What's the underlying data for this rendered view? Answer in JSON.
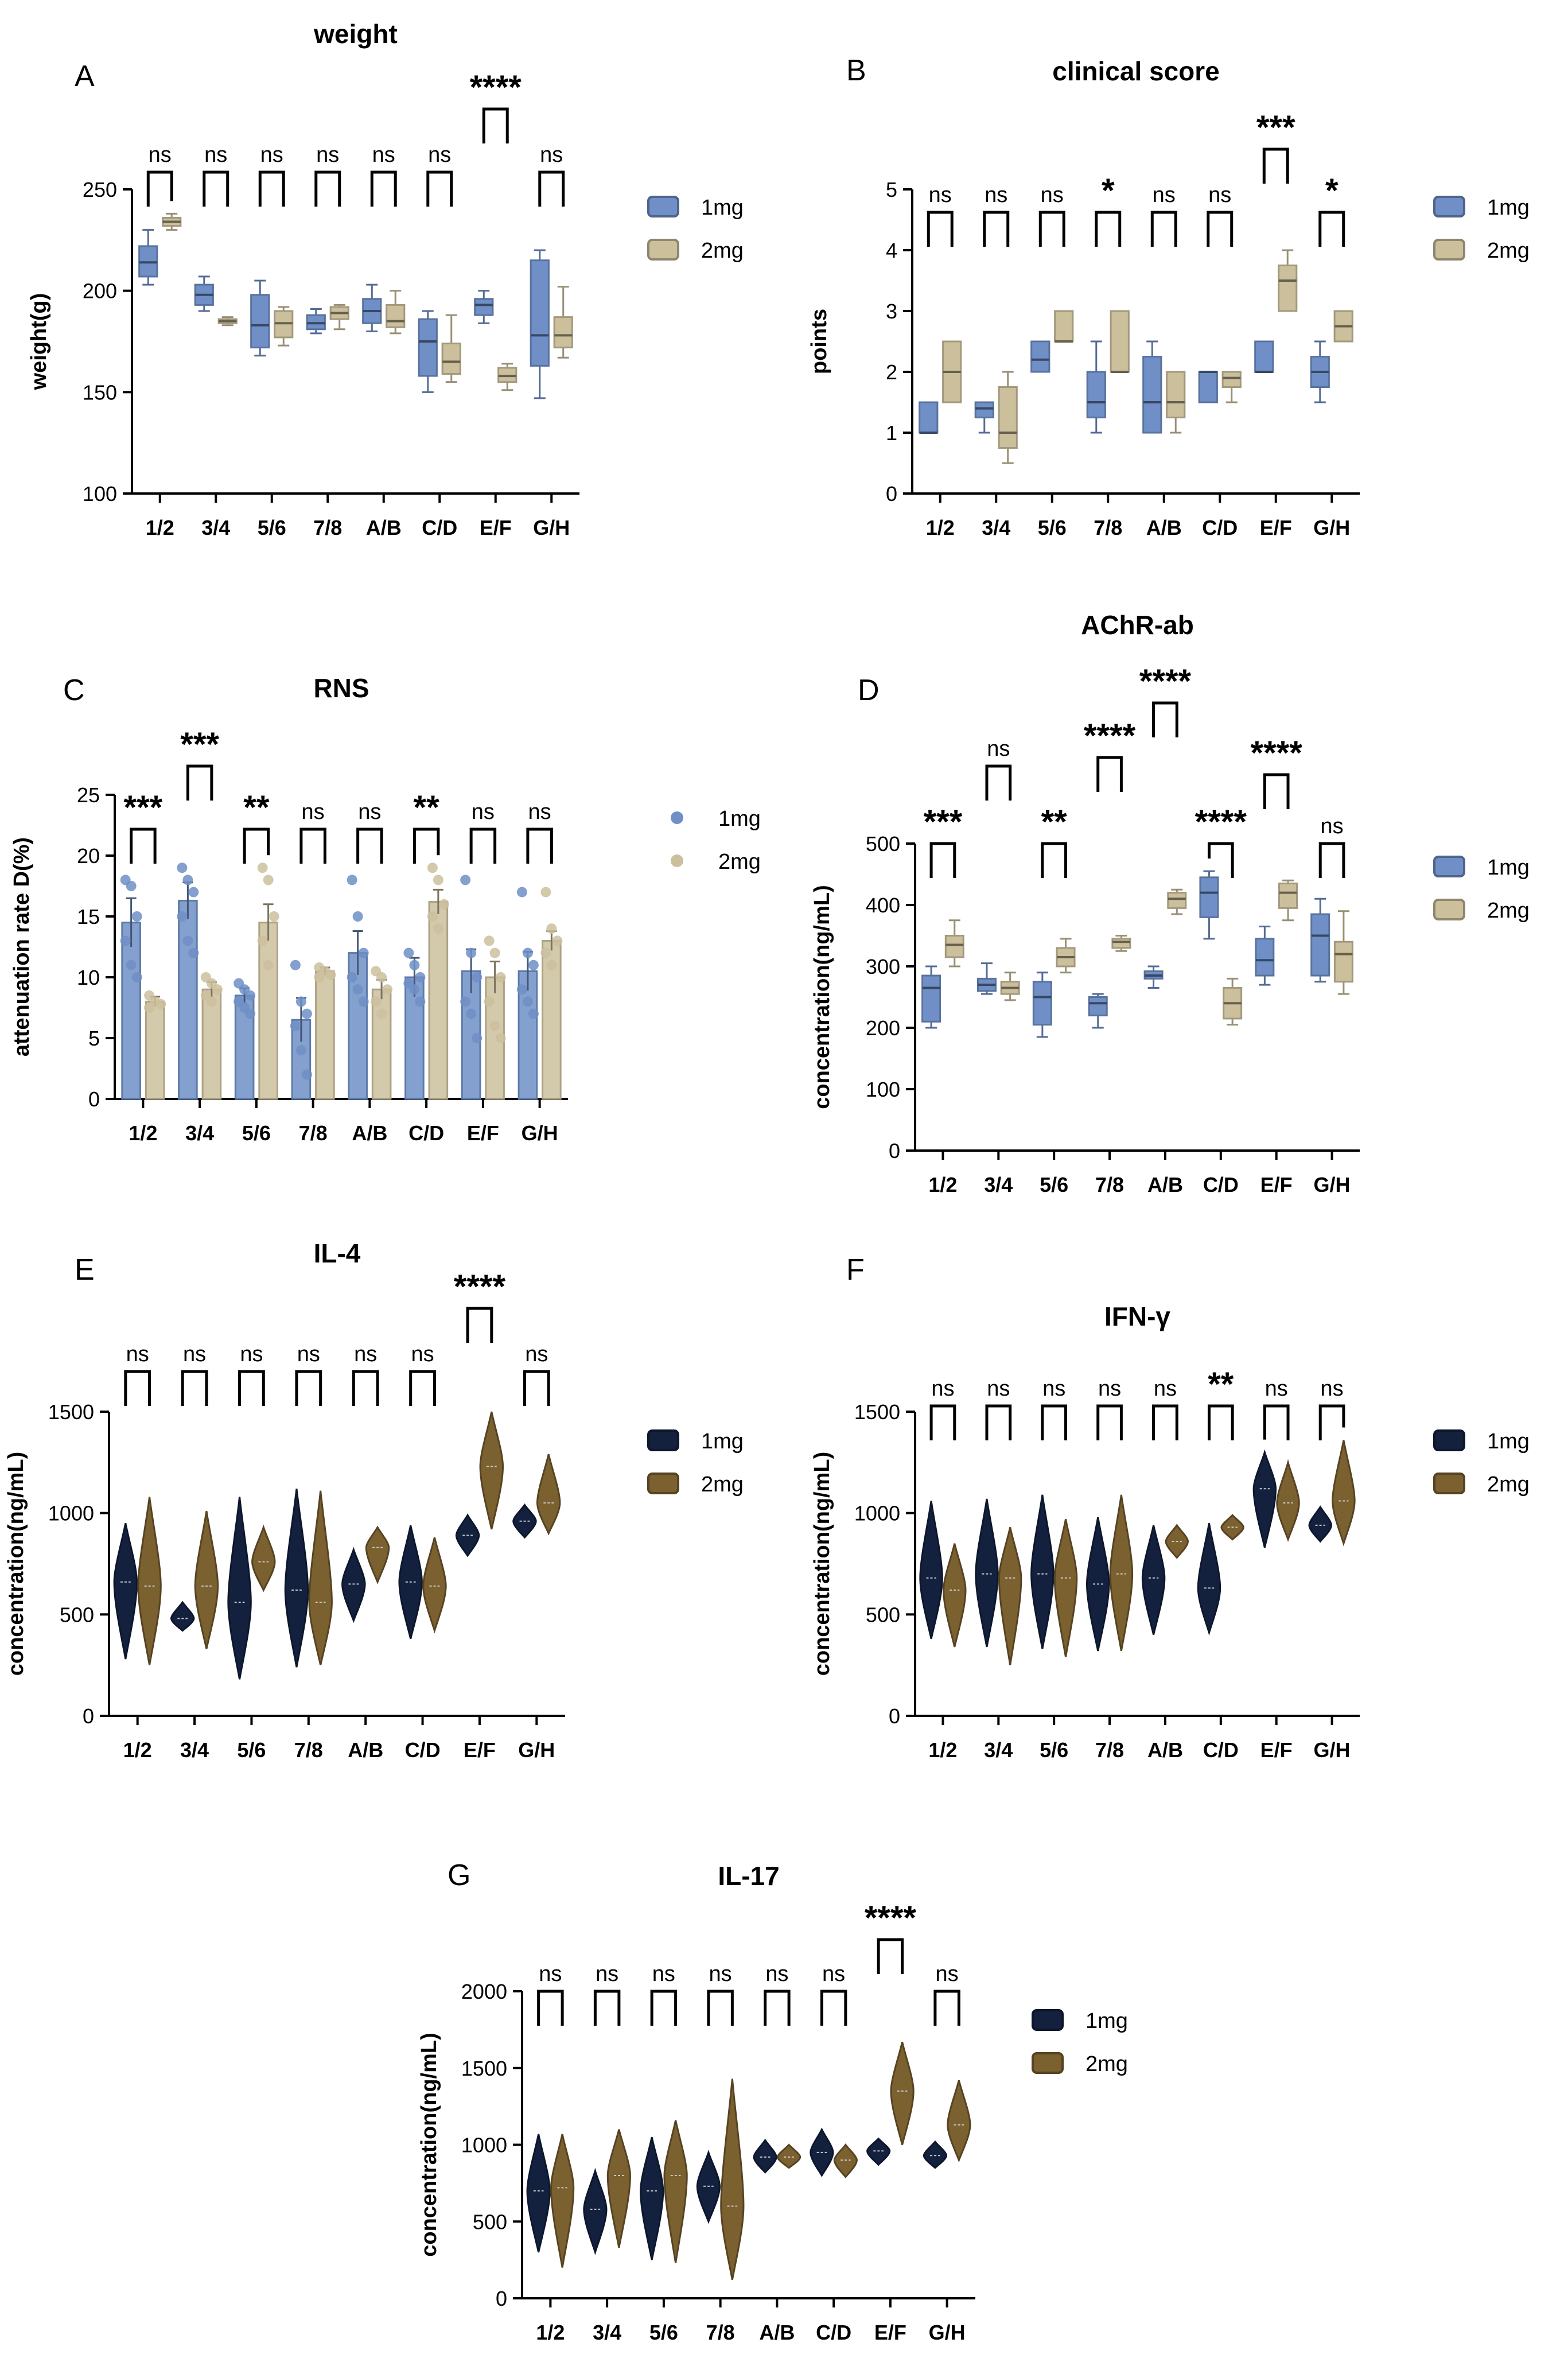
{
  "figure": {
    "panels": [
      "A",
      "B",
      "C",
      "D",
      "E",
      "F",
      "G"
    ]
  },
  "legend_labels": [
    "1mg",
    "2mg"
  ],
  "chart_data": [
    {
      "panel": "A",
      "title": "weight",
      "type": "box",
      "ylabel": "weight(g)",
      "ylim": [
        100,
        250
      ],
      "yticks": [
        100,
        150,
        200,
        250
      ],
      "categories": [
        "1/2",
        "3/4",
        "5/6",
        "7/8",
        "A/B",
        "C/D",
        "E/F",
        "G/H"
      ],
      "colors": {
        "1mg": "#6f8fc6",
        "2mg": "#cbbf9c"
      },
      "series": [
        {
          "name": "1mg",
          "boxes": [
            [
              203,
              207,
              214,
              222,
              230
            ],
            [
              190,
              193,
              198,
              203,
              207
            ],
            [
              168,
              172,
              183,
              198,
              205
            ],
            [
              179,
              181,
              184,
              188,
              191
            ],
            [
              180,
              184,
              190,
              196,
              203
            ],
            [
              150,
              158,
              175,
              186,
              190
            ],
            [
              184,
              188,
              193,
              196,
              200
            ],
            [
              147,
              163,
              178,
              215,
              220
            ]
          ]
        },
        {
          "name": "2mg",
          "boxes": [
            [
              230,
              232,
              234,
              236,
              238
            ],
            [
              183,
              184,
              185,
              186,
              187
            ],
            [
              173,
              177,
              184,
              190,
              192
            ],
            [
              181,
              186,
              189,
              192,
              193
            ],
            [
              179,
              182,
              185,
              193,
              200
            ],
            [
              155,
              159,
              165,
              174,
              188
            ],
            [
              151,
              155,
              158,
              162,
              164
            ],
            [
              167,
              172,
              178,
              187,
              202
            ]
          ]
        }
      ],
      "significance": [
        "ns",
        "ns",
        "ns",
        "ns",
        "ns",
        "ns",
        "****",
        "ns"
      ]
    },
    {
      "panel": "B",
      "title": "clinical score",
      "type": "box",
      "ylabel": "points",
      "ylim": [
        0,
        5
      ],
      "yticks": [
        0,
        1,
        2,
        3,
        4,
        5
      ],
      "categories": [
        "1/2",
        "3/4",
        "5/6",
        "7/8",
        "A/B",
        "C/D",
        "E/F",
        "G/H"
      ],
      "colors": {
        "1mg": "#6f8fc6",
        "2mg": "#cbbf9c"
      },
      "series": [
        {
          "name": "1mg",
          "boxes": [
            [
              1,
              1,
              1,
              1.5,
              1.5
            ],
            [
              1,
              1.25,
              1.4,
              1.5,
              1.5
            ],
            [
              2,
              2,
              2.2,
              2.5,
              2.5
            ],
            [
              1,
              1.25,
              1.5,
              2,
              2.5
            ],
            [
              1,
              1,
              1.5,
              2.25,
              2.5
            ],
            [
              1.5,
              1.5,
              2,
              2,
              2
            ],
            [
              2,
              2,
              2,
              2.5,
              2.5
            ],
            [
              1.5,
              1.75,
              2,
              2.25,
              2.5
            ]
          ]
        },
        {
          "name": "2mg",
          "boxes": [
            [
              1.5,
              1.5,
              2,
              2.5,
              2.5
            ],
            [
              0.5,
              0.75,
              1,
              1.75,
              2
            ],
            [
              2.5,
              2.5,
              2.5,
              3,
              3
            ],
            [
              2,
              2,
              2,
              3,
              3
            ],
            [
              1,
              1.25,
              1.5,
              2,
              2
            ],
            [
              1.5,
              1.75,
              1.9,
              2,
              2
            ],
            [
              3,
              3,
              3.5,
              3.75,
              4
            ],
            [
              2.5,
              2.5,
              2.75,
              3,
              3
            ]
          ]
        }
      ],
      "significance": [
        "ns",
        "ns",
        "ns",
        "*",
        "ns",
        "ns",
        "***",
        "*"
      ]
    },
    {
      "panel": "C",
      "title": "RNS",
      "type": "bar",
      "ylabel": "attenuation rate D(%)",
      "ylim": [
        0,
        25
      ],
      "yticks": [
        0,
        5,
        10,
        15,
        20,
        25
      ],
      "categories": [
        "1/2",
        "3/4",
        "5/6",
        "7/8",
        "A/B",
        "C/D",
        "E/F",
        "G/H"
      ],
      "colors": {
        "1mg": "#6f8fc6",
        "2mg": "#cbbf9c"
      },
      "series": [
        {
          "name": "1mg",
          "values": [
            14.5,
            16.3,
            8.5,
            6.5,
            12.0,
            10.0,
            10.5,
            10.5
          ],
          "errors": [
            2.0,
            1.5,
            0.6,
            1.8,
            1.8,
            1.6,
            1.8,
            1.6
          ],
          "points": [
            [
              18,
              17.5,
              15,
              13,
              11,
              10
            ],
            [
              19,
              18,
              17,
              15,
              13,
              12
            ],
            [
              9.5,
              9,
              8.5,
              8,
              7.5,
              7
            ],
            [
              11,
              8,
              7,
              6,
              4,
              2
            ],
            [
              18,
              15,
              12,
              10,
              9,
              8
            ],
            [
              12,
              11,
              10,
              9.5,
              9,
              8
            ],
            [
              18,
              12,
              10,
              8,
              7,
              5
            ],
            [
              17,
              12,
              11,
              9,
              8,
              7
            ]
          ]
        },
        {
          "name": "2mg",
          "values": [
            8.0,
            9.0,
            14.5,
            10.5,
            9.0,
            16.2,
            10.0,
            13.0
          ],
          "errors": [
            0.4,
            0.6,
            1.5,
            0.3,
            0.8,
            1.0,
            1.3,
            0.8
          ],
          "points": [
            [
              8.5,
              8,
              7.8,
              7.5
            ],
            [
              10,
              9.5,
              9,
              8.5,
              8
            ],
            [
              19,
              18,
              15,
              13,
              11
            ],
            [
              10.8,
              10.5,
              10.2,
              10
            ],
            [
              10.5,
              10,
              9,
              8,
              7
            ],
            [
              19,
              18,
              16,
              15,
              14
            ],
            [
              13,
              12,
              10,
              8,
              6,
              5
            ],
            [
              17,
              14,
              13,
              12,
              11
            ]
          ]
        }
      ],
      "significance": [
        "***",
        "***",
        "**",
        "ns",
        "ns",
        "**",
        "ns",
        "ns"
      ]
    },
    {
      "panel": "D",
      "title": "AChR-ab",
      "type": "box",
      "ylabel": "concentration(ng/mL)",
      "ylim": [
        0,
        500
      ],
      "yticks": [
        0,
        100,
        200,
        300,
        400,
        500
      ],
      "categories": [
        "1/2",
        "3/4",
        "5/6",
        "7/8",
        "A/B",
        "C/D",
        "E/F",
        "G/H"
      ],
      "colors": {
        "1mg": "#6f8fc6",
        "2mg": "#cbbf9c"
      },
      "series": [
        {
          "name": "1mg",
          "boxes": [
            [
              200,
              210,
              265,
              285,
              300
            ],
            [
              255,
              260,
              270,
              280,
              305
            ],
            [
              185,
              205,
              250,
              275,
              290
            ],
            [
              200,
              220,
              240,
              250,
              255
            ],
            [
              265,
              280,
              285,
              292,
              300
            ],
            [
              345,
              380,
              420,
              445,
              455
            ],
            [
              270,
              285,
              310,
              345,
              365
            ],
            [
              275,
              285,
              350,
              385,
              410
            ]
          ]
        },
        {
          "name": "2mg",
          "boxes": [
            [
              300,
              315,
              335,
              350,
              375
            ],
            [
              245,
              255,
              265,
              275,
              290
            ],
            [
              290,
              300,
              315,
              330,
              345
            ],
            [
              325,
              330,
              340,
              345,
              350
            ],
            [
              385,
              395,
              410,
              420,
              425
            ],
            [
              205,
              215,
              240,
              265,
              280
            ],
            [
              375,
              395,
              420,
              435,
              440
            ],
            [
              255,
              275,
              320,
              340,
              390
            ]
          ]
        }
      ],
      "significance": [
        "***",
        "ns",
        "**",
        "****",
        "****",
        "****",
        "****",
        "ns"
      ]
    },
    {
      "panel": "E",
      "title": "IL-4",
      "type": "violin",
      "ylabel": "concentration(ng/mL)",
      "ylim": [
        0,
        1500
      ],
      "yticks": [
        0,
        500,
        1000,
        1500
      ],
      "categories": [
        "1/2",
        "3/4",
        "5/6",
        "7/8",
        "A/B",
        "C/D",
        "E/F",
        "G/H"
      ],
      "colors": {
        "1mg": "#13213f",
        "2mg": "#7b6030"
      },
      "series": [
        {
          "name": "1mg",
          "violins": [
            [
              280,
              950,
              660
            ],
            [
              420,
              560,
              480
            ],
            [
              180,
              1080,
              560
            ],
            [
              240,
              1120,
              620
            ],
            [
              470,
              820,
              650
            ],
            [
              380,
              940,
              660
            ],
            [
              790,
              990,
              890
            ],
            [
              880,
              1040,
              960
            ]
          ]
        },
        {
          "name": "2mg",
          "violins": [
            [
              250,
              1080,
              640
            ],
            [
              330,
              1010,
              640
            ],
            [
              620,
              930,
              760
            ],
            [
              250,
              1110,
              560
            ],
            [
              660,
              930,
              830
            ],
            [
              420,
              880,
              640
            ],
            [
              920,
              1500,
              1230
            ],
            [
              900,
              1290,
              1050
            ]
          ]
        }
      ],
      "significance": [
        "ns",
        "ns",
        "ns",
        "ns",
        "ns",
        "ns",
        "****",
        "ns"
      ]
    },
    {
      "panel": "F",
      "title": "IFN-γ",
      "type": "violin",
      "ylabel": "concentration(ng/mL)",
      "ylim": [
        0,
        1500
      ],
      "yticks": [
        0,
        500,
        1000,
        1500
      ],
      "categories": [
        "1/2",
        "3/4",
        "5/6",
        "7/8",
        "A/B",
        "C/D",
        "E/F",
        "G/H"
      ],
      "colors": {
        "1mg": "#13213f",
        "2mg": "#7b6030"
      },
      "series": [
        {
          "name": "1mg",
          "violins": [
            [
              380,
              1060,
              680
            ],
            [
              340,
              1070,
              700
            ],
            [
              330,
              1090,
              700
            ],
            [
              320,
              980,
              650
            ],
            [
              400,
              940,
              680
            ],
            [
              410,
              950,
              630
            ],
            [
              830,
              1300,
              1120
            ],
            [
              860,
              1030,
              940
            ]
          ]
        },
        {
          "name": "2mg",
          "violins": [
            [
              340,
              850,
              620
            ],
            [
              250,
              930,
              680
            ],
            [
              290,
              970,
              680
            ],
            [
              320,
              1090,
              700
            ],
            [
              780,
              940,
              860
            ],
            [
              870,
              990,
              930
            ],
            [
              870,
              1250,
              1050
            ],
            [
              850,
              1360,
              1060
            ]
          ]
        }
      ],
      "significance": [
        "ns",
        "ns",
        "ns",
        "ns",
        "ns",
        "**",
        "ns",
        "ns"
      ]
    },
    {
      "panel": "G",
      "title": "IL-17",
      "type": "violin",
      "ylabel": "concentration(ng/mL)",
      "ylim": [
        0,
        2000
      ],
      "yticks": [
        0,
        500,
        1000,
        1500,
        2000
      ],
      "categories": [
        "1/2",
        "3/4",
        "5/6",
        "7/8",
        "A/B",
        "C/D",
        "E/F",
        "G/H"
      ],
      "colors": {
        "1mg": "#13213f",
        "2mg": "#7b6030"
      },
      "series": [
        {
          "name": "1mg",
          "violins": [
            [
              300,
              1070,
              700
            ],
            [
              300,
              830,
              580
            ],
            [
              250,
              1050,
              700
            ],
            [
              500,
              950,
              730
            ],
            [
              820,
              1030,
              920
            ],
            [
              800,
              1100,
              950
            ],
            [
              870,
              1040,
              960
            ],
            [
              850,
              1020,
              930
            ]
          ]
        },
        {
          "name": "2mg",
          "violins": [
            [
              200,
              1070,
              720
            ],
            [
              330,
              1100,
              800
            ],
            [
              230,
              1160,
              800
            ],
            [
              120,
              1430,
              600
            ],
            [
              850,
              1000,
              920
            ],
            [
              790,
              1000,
              900
            ],
            [
              1000,
              1670,
              1350
            ],
            [
              900,
              1420,
              1130
            ]
          ]
        }
      ],
      "significance": [
        "ns",
        "ns",
        "ns",
        "ns",
        "ns",
        "ns",
        "****",
        "ns"
      ]
    }
  ]
}
